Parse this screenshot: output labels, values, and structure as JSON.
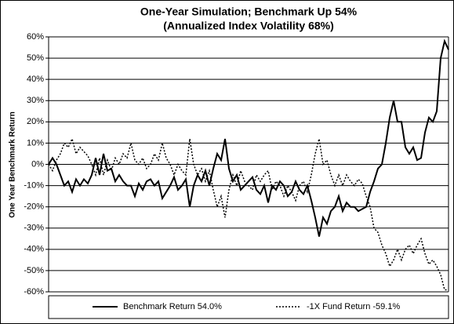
{
  "chart_data": {
    "type": "line",
    "title": "One-Year Simulation; Benchmark Up 54%",
    "subtitle": "(Annualized Index Volatility 68%)",
    "y_label": "One Year Benchmark Return",
    "ylim": [
      -60,
      60
    ],
    "yticks": [
      {
        "value": -60,
        "label": "-60%"
      },
      {
        "value": -50,
        "label": "-50%"
      },
      {
        "value": -40,
        "label": "-40%"
      },
      {
        "value": -30,
        "label": "-30%"
      },
      {
        "value": -20,
        "label": "-20%"
      },
      {
        "value": -10,
        "label": "-10%"
      },
      {
        "value": 0,
        "label": "0%"
      },
      {
        "value": 10,
        "label": "10%"
      },
      {
        "value": 20,
        "label": "20%"
      },
      {
        "value": 30,
        "label": "30%"
      },
      {
        "value": 40,
        "label": "40%"
      },
      {
        "value": 50,
        "label": "50%"
      },
      {
        "value": 60,
        "label": "60%"
      }
    ],
    "grid": true,
    "legend": "bottom",
    "series": [
      {
        "name": "Benchmark Return 54.0%",
        "color": "#000000",
        "line_style": "solid",
        "values": [
          0,
          3,
          0,
          -5,
          -10,
          -8,
          -13,
          -7,
          -10,
          -7,
          -9,
          -5,
          3,
          -5,
          5,
          -3,
          -2,
          -8,
          -5,
          -8,
          -10,
          -10,
          -15,
          -9,
          -12,
          -8,
          -7,
          -10,
          -8,
          -16,
          -13,
          -10,
          -6,
          -12,
          -10,
          -7,
          -20,
          -10,
          -5,
          -8,
          -3,
          -10,
          -2,
          5,
          2,
          12,
          -2,
          -8,
          -5,
          -12,
          -10,
          -8,
          -6,
          -12,
          -14,
          -10,
          -18,
          -10,
          -12,
          -8,
          -10,
          -15,
          -13,
          -8,
          -12,
          -14,
          -10,
          -17,
          -25,
          -34,
          -25,
          -28,
          -22,
          -20,
          -15,
          -22,
          -18,
          -20,
          -20,
          -22,
          -21,
          -20,
          -13,
          -8,
          -2,
          0,
          10,
          22,
          30,
          20,
          20,
          8,
          5,
          8,
          2,
          3,
          15,
          22,
          20,
          25,
          50,
          58,
          54
        ]
      },
      {
        "name": "-1X Fund Return -59.1%",
        "color": "#000000",
        "line_style": "dotted",
        "values": [
          0,
          -3,
          2,
          5,
          10,
          8,
          12,
          5,
          8,
          6,
          4,
          0,
          -5,
          3,
          -5,
          2,
          -3,
          3,
          0,
          5,
          3,
          10,
          2,
          0,
          3,
          -2,
          0,
          5,
          2,
          10,
          3,
          0,
          -5,
          0,
          -3,
          -5,
          12,
          0,
          -5,
          -2,
          -8,
          -3,
          -12,
          -20,
          -15,
          -25,
          -12,
          -5,
          -10,
          -3,
          -8,
          -10,
          -12,
          -5,
          -8,
          -5,
          -3,
          -12,
          -8,
          -10,
          -15,
          -10,
          -13,
          -17,
          -10,
          -8,
          -13,
          -5,
          5,
          12,
          0,
          2,
          -5,
          -10,
          -5,
          -10,
          -5,
          -8,
          -10,
          -7,
          -9,
          -15,
          -20,
          -30,
          -32,
          -38,
          -42,
          -48,
          -45,
          -40,
          -45,
          -40,
          -38,
          -42,
          -38,
          -35,
          -42,
          -47,
          -45,
          -48,
          -52,
          -59,
          -59.1
        ]
      }
    ]
  }
}
